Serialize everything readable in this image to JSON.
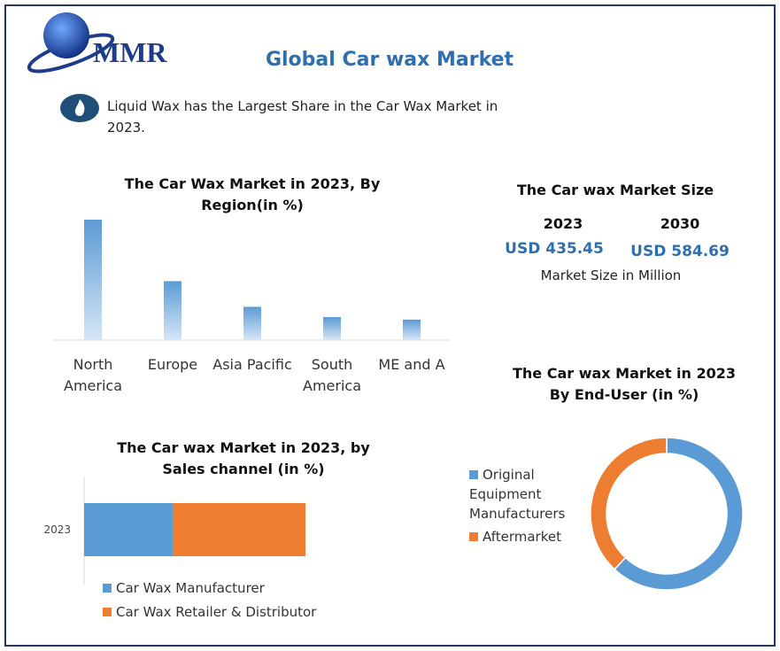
{
  "logo": "MMR",
  "title": "Global Car wax Market",
  "highlight": "Liquid Wax has the Largest Share in the Car Wax Market in 2023.",
  "market_size": {
    "title": "The Car wax Market Size",
    "years": [
      "2023",
      "2030"
    ],
    "values": [
      "USD 435.45",
      "USD 584.69"
    ],
    "note": "Market Size in Million"
  },
  "chart_data": [
    {
      "type": "bar",
      "title": "The Car Wax Market in 2023, By Region(in %)",
      "categories": [
        "North America",
        "Europe",
        "Asia Pacific",
        "South America",
        "ME and A"
      ],
      "values": [
        47,
        23,
        13,
        9,
        8
      ],
      "color": "#5b9bd5"
    },
    {
      "type": "stacked-hbar",
      "title": "The Car wax Market in 2023, by Sales channel (in %)",
      "categories": [
        "2023"
      ],
      "series": [
        {
          "name": "Car Wax Manufacturer",
          "color": "#5b9bd5",
          "values": [
            40
          ]
        },
        {
          "name": "Car Wax Retailer & Distributor",
          "color": "#ed7d31",
          "values": [
            60
          ]
        }
      ]
    },
    {
      "type": "donut",
      "title": "The Car wax Market in 2023 By End-User (in %)",
      "categories": [
        "Original Equipment Manufacturers",
        "Aftermarket"
      ],
      "values": [
        62,
        38
      ],
      "colors": [
        "#5b9bd5",
        "#ed7d31"
      ]
    }
  ]
}
